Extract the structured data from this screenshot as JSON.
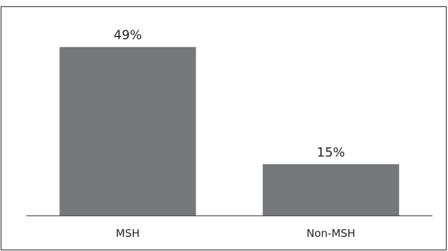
{
  "chart_data": {
    "type": "bar",
    "categories": [
      "MSH",
      "Non-MSH"
    ],
    "values": [
      49,
      15
    ],
    "data_labels": [
      "49%",
      "15%"
    ],
    "title": "",
    "xlabel": "",
    "ylabel": "",
    "ylim": [
      0,
      60
    ],
    "grid": false,
    "legend": "none",
    "colors": {
      "bar": "#77787b",
      "axis": "#231f20",
      "text": "#231f20",
      "border": "#231f20"
    }
  }
}
